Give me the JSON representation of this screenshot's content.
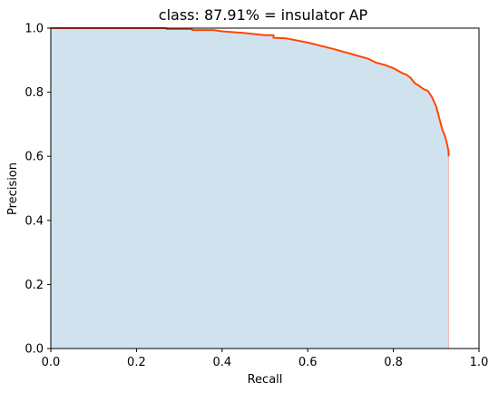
{
  "chart_data": {
    "type": "area",
    "title": "class: 87.91% = insulator AP",
    "xlabel": "Recall",
    "ylabel": "Precision",
    "xlim": [
      0.0,
      1.0
    ],
    "ylim": [
      0.0,
      1.0
    ],
    "x_ticks": [
      0.0,
      0.2,
      0.4,
      0.6,
      0.8,
      1.0
    ],
    "y_ticks": [
      0.0,
      0.2,
      0.4,
      0.6,
      0.8,
      1.0
    ],
    "x_tick_labels": [
      "0.0",
      "0.2",
      "0.4",
      "0.6",
      "0.8",
      "1.0"
    ],
    "y_tick_labels": [
      "0.0",
      "0.2",
      "0.4",
      "0.6",
      "0.8",
      "1.0"
    ],
    "grid": false,
    "colors": {
      "line": "#ff4500",
      "fill": "#d1e2ef",
      "edge": "#f5b4b4"
    },
    "series": [
      {
        "x": [
          0.0,
          0.27,
          0.27,
          0.33,
          0.33,
          0.38,
          0.4,
          0.45,
          0.5,
          0.52,
          0.52,
          0.55,
          0.6,
          0.63,
          0.66,
          0.7,
          0.74,
          0.76,
          0.78,
          0.8,
          0.82,
          0.83,
          0.84,
          0.85,
          0.86,
          0.87,
          0.88,
          0.89,
          0.9,
          0.905,
          0.91,
          0.915,
          0.92,
          0.925,
          0.929,
          0.929,
          0.929
        ],
        "y": [
          1.0,
          1.0,
          0.997,
          0.997,
          0.994,
          0.994,
          0.99,
          0.985,
          0.978,
          0.978,
          0.97,
          0.968,
          0.955,
          0.945,
          0.935,
          0.92,
          0.905,
          0.892,
          0.885,
          0.875,
          0.86,
          0.855,
          0.845,
          0.828,
          0.82,
          0.81,
          0.805,
          0.785,
          0.755,
          0.73,
          0.705,
          0.68,
          0.665,
          0.64,
          0.615,
          0.6,
          0.0
        ]
      }
    ]
  }
}
